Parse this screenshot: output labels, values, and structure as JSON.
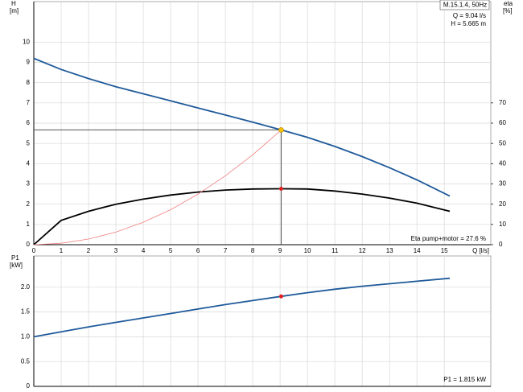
{
  "chart_data": [
    {
      "type": "line",
      "ylabel": "H",
      "yunit": "[m]",
      "y2label": "eta",
      "y2unit": "[%]",
      "xlabel": "Q [l/s]",
      "legend_title": "M.15.1.4, 50Hz",
      "annotations": [
        "Q = 9.04 l/s",
        "H = 5.665 m",
        "Eta pump+motor = 27.6 %"
      ],
      "xlim": [
        0,
        16.7
      ],
      "xticks": [
        0,
        1,
        2,
        3,
        4,
        5,
        6,
        7,
        8,
        9,
        10,
        11,
        12,
        13,
        14,
        15
      ],
      "ylim": [
        0,
        12
      ],
      "yticks": [
        0,
        1,
        2,
        3,
        4,
        5,
        6,
        7,
        8,
        9,
        10
      ],
      "y2lim": [
        0,
        120
      ],
      "y2ticks": [
        0,
        10,
        20,
        30,
        40,
        50,
        60,
        70
      ],
      "grid": true,
      "series": [
        {
          "color": "#1f5a9a",
          "axis": "y",
          "x": [
            0,
            1,
            2,
            3,
            4,
            5,
            6,
            7,
            8,
            9.04,
            10,
            11,
            12,
            13,
            14,
            15.2
          ],
          "values": [
            9.2,
            8.65,
            8.2,
            7.8,
            7.45,
            7.1,
            6.75,
            6.4,
            6.05,
            5.665,
            5.3,
            4.85,
            4.35,
            3.8,
            3.2,
            2.4
          ]
        },
        {
          "color": "#000000",
          "axis": "y2",
          "x": [
            0,
            1,
            2,
            3,
            4,
            5,
            6,
            7,
            8,
            9.04,
            10,
            11,
            12,
            13,
            14,
            15.2
          ],
          "values": [
            0,
            12,
            16.5,
            20,
            22.5,
            24.5,
            26,
            27,
            27.5,
            27.6,
            27.5,
            26.5,
            25,
            23,
            20.5,
            16.5
          ]
        },
        {
          "color": "#f08080",
          "axis": "y",
          "x": [
            0,
            1,
            2,
            3,
            4,
            5,
            6,
            7,
            8,
            9.04
          ],
          "values": [
            0,
            0.07,
            0.28,
            0.62,
            1.11,
            1.73,
            2.5,
            3.4,
            4.44,
            5.665
          ]
        }
      ],
      "duty": {
        "x": 9.04,
        "h": 5.665,
        "eta": 27.6
      }
    },
    {
      "type": "line",
      "ylabel": "P1",
      "yunit": "[kW]",
      "annotations": [
        "P1 = 1.815 kW"
      ],
      "xlim": [
        0,
        16.7
      ],
      "xticks": [
        0,
        1,
        2,
        3,
        4,
        5,
        6,
        7,
        8,
        9,
        10,
        11,
        12,
        13,
        14,
        15
      ],
      "ylim": [
        0,
        2.63
      ],
      "yticks": [
        0,
        0.5,
        {
          "value": 1,
          "label": "1.0"
        },
        1.5,
        {
          "value": 2,
          "label": "2.0"
        }
      ],
      "grid": true,
      "series": [
        {
          "color": "#1f5a9a",
          "axis": "y",
          "x": [
            0,
            1,
            2,
            3,
            4,
            5,
            6,
            7,
            8,
            9.04,
            10,
            11,
            12,
            13,
            14,
            15.2
          ],
          "values": [
            1.0,
            1.1,
            1.2,
            1.29,
            1.38,
            1.47,
            1.56,
            1.65,
            1.73,
            1.815,
            1.89,
            1.96,
            2.02,
            2.07,
            2.12,
            2.18
          ]
        }
      ],
      "duty": {
        "x": 9.04,
        "p1": 1.815
      }
    }
  ]
}
